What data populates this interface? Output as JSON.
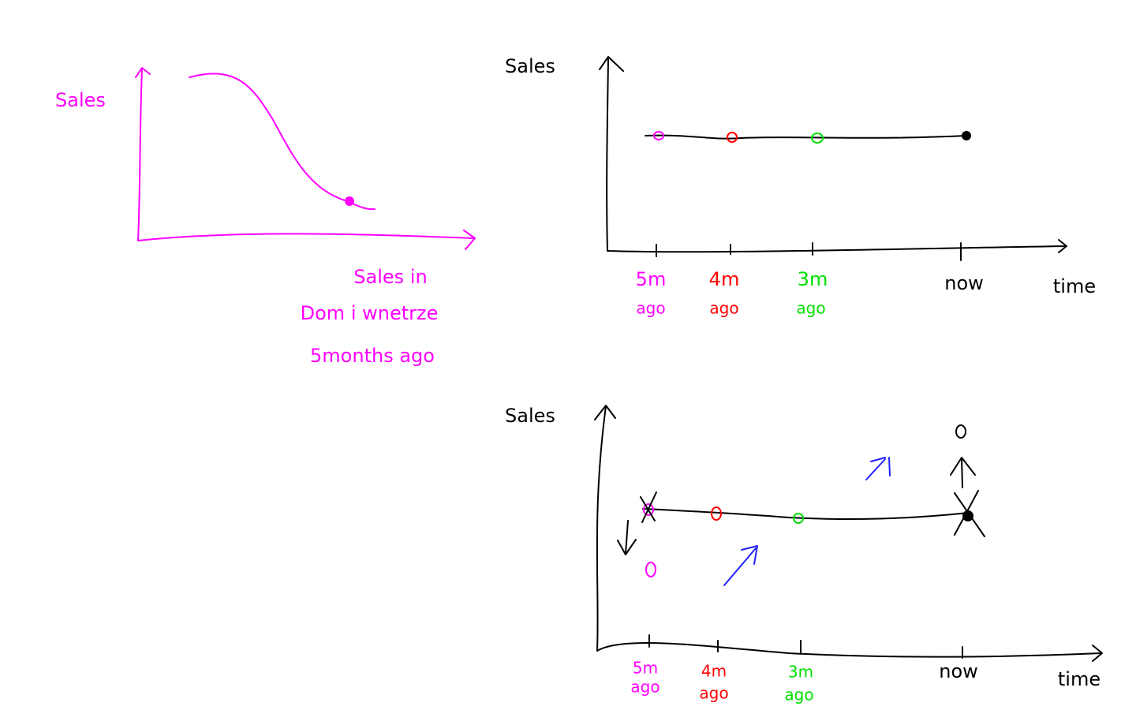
{
  "sketch1": {
    "y_label": "Sales",
    "caption": [
      "Sales in",
      "Dom i wnetrze",
      "5months ago"
    ]
  },
  "sketch2": {
    "y_label": "Sales",
    "x_labels": [
      {
        "line1": "5m",
        "line2": "ago"
      },
      {
        "line1": "4m",
        "line2": "ago"
      },
      {
        "line1": "3m",
        "line2": "ago"
      },
      {
        "line1": "now"
      }
    ],
    "x_end": "time"
  },
  "sketch3": {
    "y_label": "Sales",
    "x_labels": [
      {
        "line1": "5m",
        "line2": "ago"
      },
      {
        "line1": "4m",
        "line2": "ago"
      },
      {
        "line1": "3m",
        "line2": "ago"
      },
      {
        "line1": "now"
      }
    ],
    "x_end": "time"
  }
}
